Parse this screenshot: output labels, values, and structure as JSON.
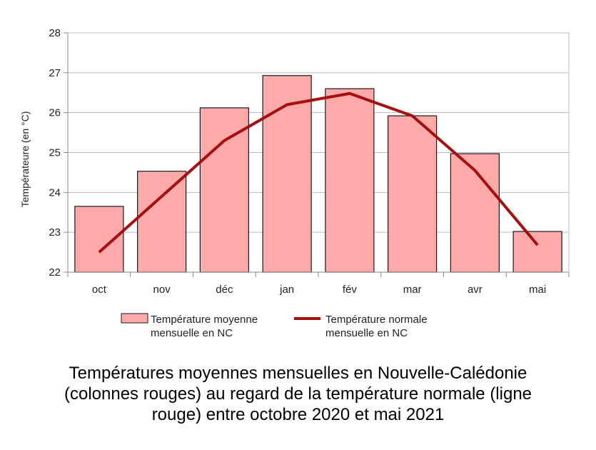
{
  "chart_data": {
    "type": "bar",
    "categories": [
      "oct",
      "nov",
      "déc",
      "jan",
      "fév",
      "mar",
      "avr",
      "mai"
    ],
    "series": [
      {
        "name": "Température moyenne mensuelle en NC",
        "kind": "bar",
        "values": [
          23.65,
          24.53,
          26.12,
          26.93,
          26.6,
          25.92,
          24.97,
          23.02
        ]
      },
      {
        "name": "Température normale mensuelle en NC",
        "kind": "line",
        "values": [
          22.5,
          23.9,
          25.3,
          26.2,
          26.48,
          25.92,
          24.55,
          22.68
        ]
      }
    ],
    "ylabel": "Températeure (en °C)",
    "xlabel": "",
    "ylim": [
      22,
      28
    ],
    "yticks": [
      "22",
      "23",
      "24",
      "25",
      "26",
      "27",
      "28"
    ],
    "grid": true,
    "legend_position": "bottom",
    "legend": [
      {
        "line1": "Température moyenne",
        "line2": "mensuelle en NC"
      },
      {
        "line1": "Température normale",
        "line2": "mensuelle en NC"
      }
    ],
    "colors": {
      "bar_fill": "#ffaaaa",
      "bar_stroke": "#1a1a1a",
      "line": "#a50f0f",
      "grid": "#bcbcbc"
    }
  },
  "caption": {
    "line1": "Températures moyennes mensuelles en Nouvelle-Calédonie",
    "line2": "(colonnes rouges) au regard de la température normale (ligne",
    "line3": "rouge) entre octobre 2020 et mai 2021"
  }
}
